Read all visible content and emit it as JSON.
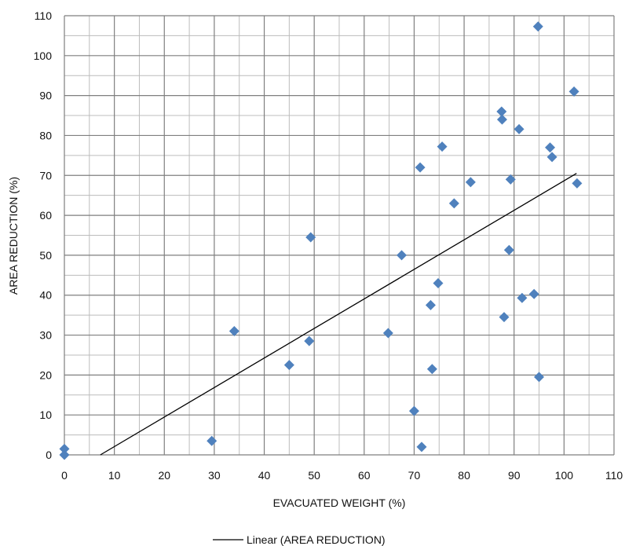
{
  "chart_data": {
    "type": "scatter",
    "title": "",
    "xlabel": "EVACUATED WEIGHT (%)",
    "ylabel": "AREA REDUCTION (%)",
    "xlim": [
      0,
      110
    ],
    "ylim": [
      0,
      110
    ],
    "x_ticks": [
      0,
      10,
      20,
      30,
      40,
      50,
      60,
      70,
      80,
      90,
      100,
      110
    ],
    "y_ticks": [
      0,
      10,
      20,
      30,
      40,
      50,
      60,
      70,
      80,
      90,
      100,
      110
    ],
    "minor_grid_step": 5,
    "grid": true,
    "legend_position": "bottom",
    "series": [
      {
        "type": "scatter",
        "marker": "diamond",
        "color": "#4f81bd",
        "points": [
          [
            0,
            1.5
          ],
          [
            0,
            0
          ],
          [
            29.5,
            3.5
          ],
          [
            34,
            31
          ],
          [
            45,
            22.5
          ],
          [
            49,
            28.5
          ],
          [
            49.3,
            54.5
          ],
          [
            64.8,
            30.5
          ],
          [
            67.5,
            50
          ],
          [
            70,
            11
          ],
          [
            71.2,
            72
          ],
          [
            71.5,
            2
          ],
          [
            73.3,
            37.5
          ],
          [
            73.6,
            21.5
          ],
          [
            74.8,
            43
          ],
          [
            75.6,
            77.2
          ],
          [
            78,
            63
          ],
          [
            81.3,
            68.3
          ],
          [
            87.5,
            86
          ],
          [
            87.6,
            84
          ],
          [
            88,
            34.5
          ],
          [
            89,
            51.3
          ],
          [
            89.3,
            69
          ],
          [
            91,
            81.6
          ],
          [
            91.6,
            39.3
          ],
          [
            94,
            40.3
          ],
          [
            94.8,
            107.3
          ],
          [
            95,
            19.5
          ],
          [
            97.2,
            77
          ],
          [
            97.6,
            74.6
          ],
          [
            102,
            91
          ],
          [
            102.6,
            68
          ]
        ]
      }
    ],
    "trendline": {
      "name": "Linear (AREA REDUCTION)",
      "type": "linear",
      "color": "#000000",
      "x": [
        7.2,
        102.5
      ],
      "y": [
        0,
        70.5
      ]
    }
  }
}
